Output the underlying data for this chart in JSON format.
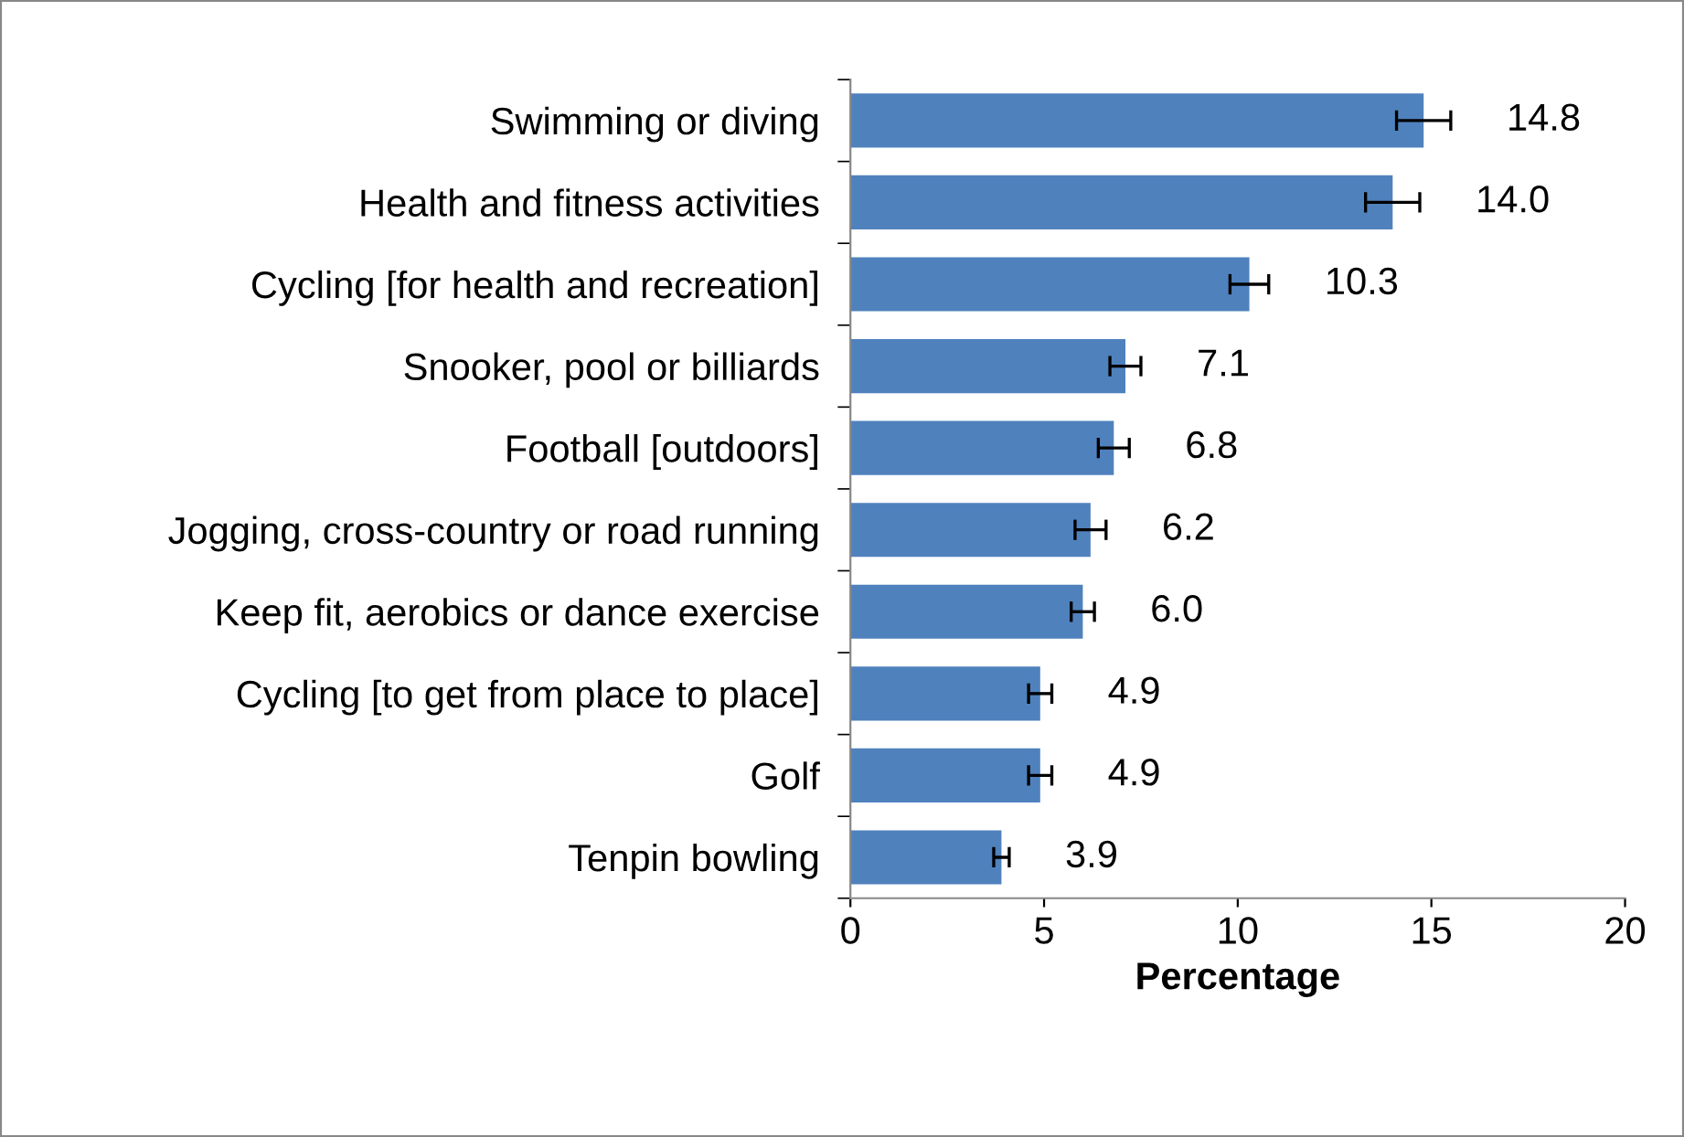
{
  "chart_data": {
    "type": "bar",
    "orientation": "horizontal",
    "xlabel": "Percentage",
    "categories": [
      "Swimming or diving",
      "Health and fitness activities",
      "Cycling [for health and recreation]",
      "Snooker, pool or billiards",
      "Football [outdoors]",
      "Jogging, cross-country or road running",
      "Keep fit, aerobics or dance exercise",
      "Cycling [to get from place to place]",
      "Golf",
      "Tenpin bowling"
    ],
    "values": [
      14.8,
      14.0,
      10.3,
      7.1,
      6.8,
      6.2,
      6.0,
      4.9,
      4.9,
      3.9
    ],
    "value_labels": [
      "14.8",
      "14.0",
      "10.3",
      "7.1",
      "6.8",
      "6.2",
      "6.0",
      "4.9",
      "4.9",
      "3.9"
    ],
    "errors": [
      0.7,
      0.7,
      0.5,
      0.4,
      0.4,
      0.4,
      0.3,
      0.3,
      0.3,
      0.2
    ],
    "color": "#4f81bd",
    "xlim": [
      0,
      20
    ],
    "xticks": [
      0,
      5,
      10,
      15,
      20
    ],
    "grid": false,
    "legend": false
  }
}
